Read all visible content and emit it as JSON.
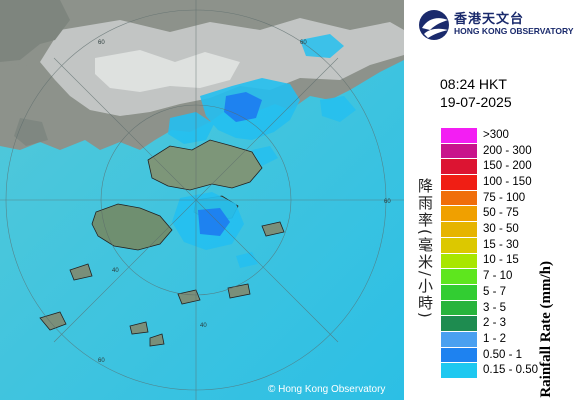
{
  "header": {
    "org_zh": "香港天文台",
    "org_en": "HONG KONG OBSERVATORY"
  },
  "time": "08:24 HKT",
  "date": "19-07-2025",
  "axis_zh": "降雨率(毫米/小時)",
  "axis_en": "Rainfall Rate (mm/h)",
  "copyright": "© Hong Kong Observatory",
  "legend": [
    {
      "label": ">300",
      "color": "#f31ef3"
    },
    {
      "label": "200 - 300",
      "color": "#c8148c"
    },
    {
      "label": "150 - 200",
      "color": "#dc1432"
    },
    {
      "label": "100 - 150",
      "color": "#f01e14"
    },
    {
      "label": "75 - 100",
      "color": "#f06e0a"
    },
    {
      "label": "50 - 75",
      "color": "#f0a000"
    },
    {
      "label": "30 - 50",
      "color": "#e6b400"
    },
    {
      "label": "15 - 30",
      "color": "#dcc800"
    },
    {
      "label": "10 - 15",
      "color": "#a8e600"
    },
    {
      "label": "7 - 10",
      "color": "#5ee61e"
    },
    {
      "label": "5 - 7",
      "color": "#32cd32"
    },
    {
      "label": "3 - 5",
      "color": "#28b43c"
    },
    {
      "label": "2 - 3",
      "color": "#1e8c50"
    },
    {
      "label": "1 - 2",
      "color": "#4aa0f0"
    },
    {
      "label": "0.50 - 1",
      "color": "#1e82f0"
    },
    {
      "label": "0.15 - 0.50",
      "color": "#1ec8f0"
    }
  ],
  "range_labels": [
    "60",
    "60",
    "60",
    "60",
    "40",
    "40"
  ],
  "colors": {
    "sea": "#3fc3de",
    "land": "#8a8f88",
    "cloud": "#c9cccb",
    "rain_light": "#24bff0",
    "rain_med": "#1e82f0",
    "brand": "#1a2a6c"
  }
}
